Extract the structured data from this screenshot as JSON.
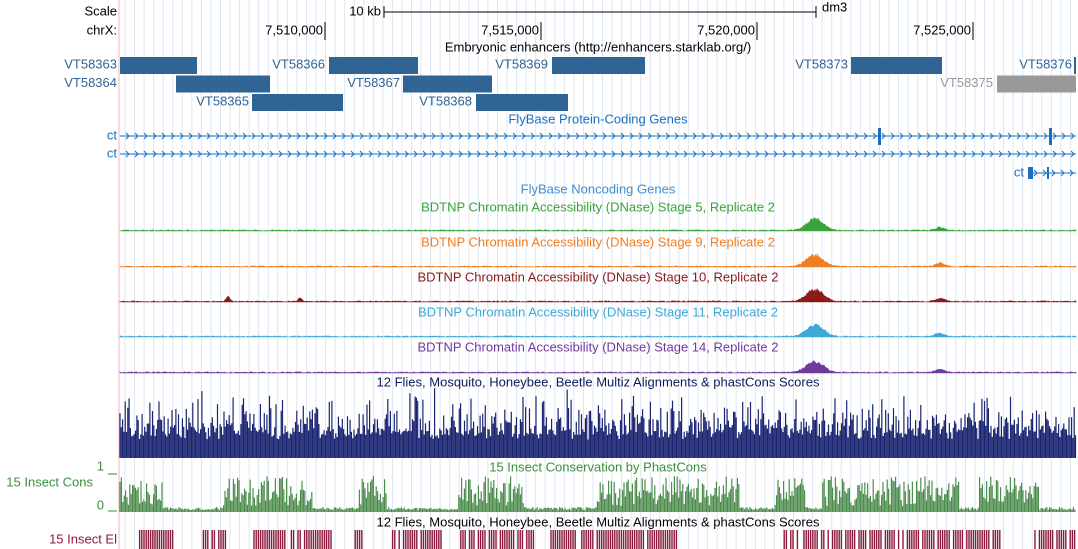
{
  "ruler": {
    "scale_label": "Scale",
    "scale_size": "10 kb",
    "assembly": "dm3",
    "chrom_label": "chrX:",
    "positions": [
      "7,510,000",
      "7,515,000",
      "7,520,000",
      "7,525,000"
    ]
  },
  "enhancers": {
    "title": "Embryonic enhancers (http://enhancers.starklab.org/)",
    "items": [
      {
        "name": "VT58363"
      },
      {
        "name": "VT58364"
      },
      {
        "name": "VT58365"
      },
      {
        "name": "VT58366"
      },
      {
        "name": "VT58367"
      },
      {
        "name": "VT58368"
      },
      {
        "name": "VT58369"
      },
      {
        "name": "VT58373"
      },
      {
        "name": "VT58375"
      },
      {
        "name": "VT58376"
      }
    ]
  },
  "genes": {
    "title": "FlyBase Protein-Coding Genes",
    "labels": [
      "ct",
      "ct",
      "ct"
    ]
  },
  "noncoding": {
    "title": "FlyBase Noncoding Genes"
  },
  "dnase": [
    {
      "title": "BDTNP Chromatin Accessibility (DNase) Stage 5, Replicate 2"
    },
    {
      "title": "BDTNP Chromatin Accessibility (DNase) Stage 9, Replicate 2"
    },
    {
      "title": "BDTNP Chromatin Accessibility (DNase) Stage 10, Replicate 2"
    },
    {
      "title": "BDTNP Chromatin Accessibility (DNase) Stage 11, Replicate 2"
    },
    {
      "title": "BDTNP Chromatin Accessibility (DNase) Stage 14, Replicate 2"
    }
  ],
  "multiz": {
    "title": "12 Flies, Mosquito, Honeybee, Beetle Multiz Alignments & phastCons Scores"
  },
  "phastcons": {
    "title": "15 Insect Conservation by PhastCons",
    "label": "15 Insect Cons",
    "max": 1,
    "min": 0
  },
  "elements": {
    "title": "12 Flies, Mosquito, Honeybee, Beetle Multiz Alignments & phastCons Scores",
    "label": "15 Insect El"
  }
}
